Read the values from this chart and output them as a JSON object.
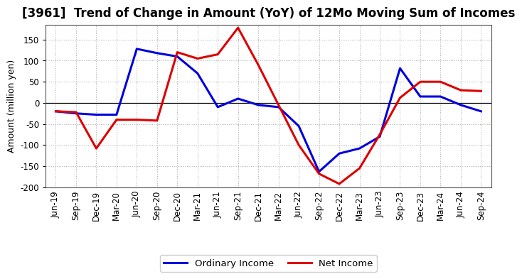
{
  "title": "[3961]  Trend of Change in Amount (YoY) of 12Mo Moving Sum of Incomes",
  "ylabel": "Amount (million yen)",
  "ylim": [
    -200,
    185
  ],
  "yticks": [
    -200,
    -150,
    -100,
    -50,
    0,
    50,
    100,
    150
  ],
  "background_color": "#ffffff",
  "plot_bg_color": "#ffffff",
  "grid_color": "#aaaaaa",
  "ordinary_income_color": "#0000dd",
  "net_income_color": "#dd0000",
  "line_width": 2.2,
  "labels": [
    "Jun-19",
    "Sep-19",
    "Dec-19",
    "Mar-20",
    "Jun-20",
    "Sep-20",
    "Dec-20",
    "Mar-21",
    "Jun-21",
    "Sep-21",
    "Dec-21",
    "Mar-22",
    "Jun-22",
    "Sep-22",
    "Dec-22",
    "Mar-23",
    "Jun-23",
    "Sep-23",
    "Dec-23",
    "Mar-24",
    "Jun-24",
    "Sep-24"
  ],
  "ordinary_income": [
    -20,
    -25,
    -28,
    -28,
    128,
    118,
    110,
    70,
    -10,
    10,
    -5,
    -10,
    -55,
    -163,
    -120,
    -108,
    -80,
    82,
    15,
    15,
    -5,
    -20
  ],
  "net_income": [
    -20,
    -22,
    -108,
    -40,
    -40,
    -42,
    120,
    105,
    115,
    178,
    90,
    -5,
    -100,
    -168,
    -192,
    -155,
    -75,
    12,
    50,
    50,
    30,
    28
  ],
  "legend_ordinary": "Ordinary Income",
  "legend_net": "Net Income",
  "title_fontsize": 12,
  "axis_fontsize": 9,
  "tick_fontsize": 8.5
}
